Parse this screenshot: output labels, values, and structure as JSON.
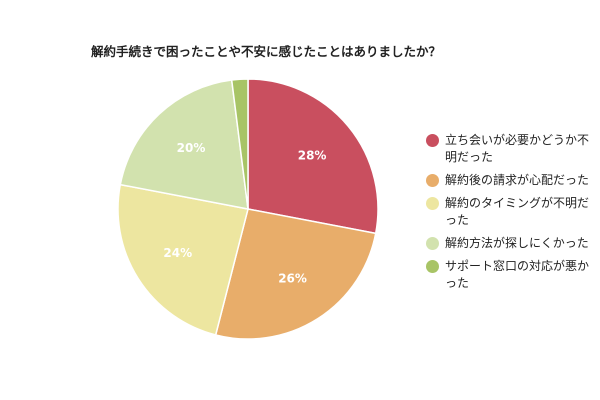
{
  "chart_data": {
    "type": "pie",
    "title": "解約手続きで困ったことや不安に感じたことはありましたか？",
    "categories": [
      "立ち会いが必要かどうか不明だった",
      "解約後の請求が心配だった",
      "解約のタイミングが不明だった",
      "解約方法が探しにくかった",
      "サポート窓口の対応が悪かった"
    ],
    "values": [
      28,
      26,
      24,
      20,
      2
    ],
    "value_labels": [
      "28%",
      "26%",
      "24%",
      "20%",
      ""
    ],
    "colors": [
      "#c94f5f",
      "#e8ad6a",
      "#ede6a0",
      "#d2e2ae",
      "#a8c466"
    ],
    "legend": "right",
    "start_angle_deg": 0,
    "direction": "clockwise"
  }
}
